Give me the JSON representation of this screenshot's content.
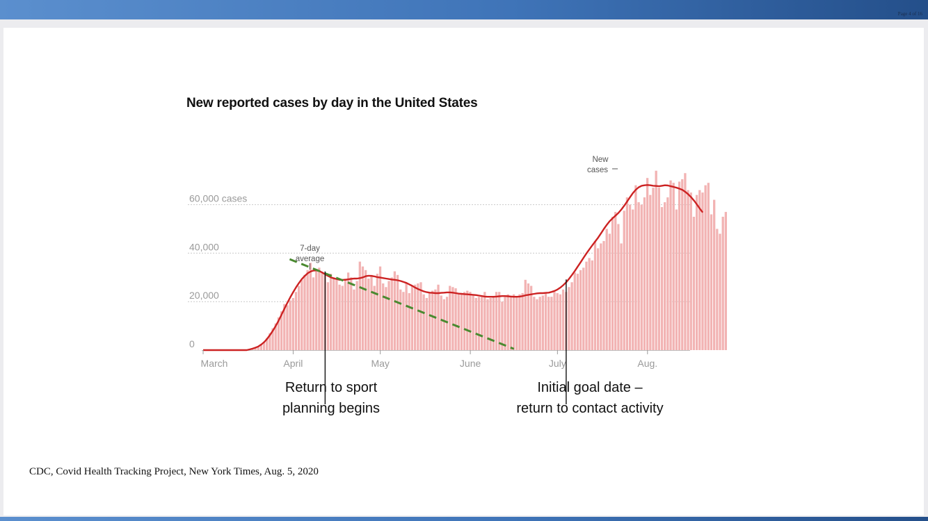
{
  "page": {
    "indicator": "Page 4 of 16"
  },
  "chart_data": {
    "type": "bar",
    "title": "New reported cases by day in the United States",
    "y_ticks": [
      {
        "value": 0,
        "label": "0"
      },
      {
        "value": 20000,
        "label": "20,000"
      },
      {
        "value": 40000,
        "label": "40,000"
      },
      {
        "value": 60000,
        "label": "60,000 cases"
      }
    ],
    "ylim": [
      0,
      75000
    ],
    "x_ticks": [
      {
        "date": "2020-03-01",
        "label": "March"
      },
      {
        "date": "2020-04-01",
        "label": "April"
      },
      {
        "date": "2020-05-01",
        "label": "May"
      },
      {
        "date": "2020-06-01",
        "label": "June"
      },
      {
        "date": "2020-07-01",
        "label": "July"
      },
      {
        "date": "2020-08-01",
        "label": "Aug."
      }
    ],
    "first_date": "2020-03-01",
    "series": [
      {
        "name": "New cases",
        "legend_label": [
          "New",
          "cases"
        ],
        "kind": "bar",
        "color": "#f2b3b3",
        "values": [
          0,
          0,
          0,
          0,
          0,
          0,
          0,
          0,
          0,
          0,
          0,
          0,
          0,
          0,
          0,
          0,
          500,
          800,
          1000,
          1500,
          2500,
          3500,
          5000,
          7000,
          9000,
          11000,
          13500,
          16000,
          19000,
          18500,
          20500,
          21500,
          24000,
          26500,
          29000,
          31000,
          33000,
          36000,
          30000,
          33500,
          34000,
          32000,
          31000,
          28000,
          31500,
          30000,
          29000,
          27000,
          26500,
          29500,
          32000,
          30000,
          25000,
          28500,
          36500,
          34500,
          33000,
          29500,
          31000,
          26500,
          31500,
          34500,
          27500,
          26000,
          28500,
          30000,
          32500,
          31000,
          25000,
          24000,
          27500,
          23500,
          26500,
          27000,
          27500,
          28000,
          23000,
          21500,
          23500,
          24500,
          25000,
          27000,
          22500,
          21000,
          22000,
          26500,
          26000,
          25500,
          23000,
          23000,
          24000,
          24500,
          24000,
          22500,
          21500,
          22000,
          22000,
          24000,
          21000,
          21500,
          22000,
          24000,
          24000,
          20000,
          22000,
          23000,
          22500,
          23000,
          22000,
          23000,
          23500,
          29000,
          27500,
          26500,
          22000,
          21000,
          22000,
          22500,
          23500,
          22000,
          22000,
          24000,
          23500,
          23000,
          25000,
          24000,
          26000,
          28000,
          32000,
          31500,
          33000,
          34000,
          36500,
          38000,
          37000,
          45000,
          42000,
          44000,
          45000,
          50000,
          48000,
          55000,
          57000,
          52000,
          44000,
          57500,
          63000,
          60000,
          58000,
          68000,
          61000,
          60000,
          63000,
          71000,
          64000,
          67000,
          74000,
          67000,
          59000,
          61000,
          63000,
          70000,
          69000,
          58000,
          69500,
          70500,
          73000,
          66000,
          65000,
          55000,
          64000,
          66000,
          65000,
          68000,
          69000,
          56000,
          62000,
          50000,
          48000,
          55000,
          57000
        ]
      },
      {
        "name": "7-day average",
        "legend_label": [
          "7-day",
          "average"
        ],
        "kind": "line",
        "color": "#cc2222",
        "values": [
          0,
          0,
          0,
          0,
          0,
          0,
          0,
          0,
          0,
          0,
          0,
          0,
          0,
          0,
          0,
          0,
          300,
          600,
          1000,
          1500,
          2300,
          3300,
          4600,
          6200,
          8000,
          10000,
          12200,
          14600,
          17100,
          19500,
          21800,
          23900,
          25900,
          27700,
          29300,
          30600,
          31700,
          32400,
          32800,
          32900,
          32600,
          32000,
          31300,
          30600,
          30000,
          29600,
          29300,
          29000,
          29000,
          29000,
          29200,
          29400,
          29500,
          29500,
          29700,
          30000,
          30500,
          30700,
          30600,
          30400,
          30100,
          29900,
          29700,
          29500,
          29300,
          29100,
          29000,
          28800,
          28500,
          28100,
          27700,
          27100,
          26500,
          25800,
          25200,
          24700,
          24200,
          23900,
          23700,
          23600,
          23500,
          23500,
          23600,
          23700,
          23800,
          23800,
          23700,
          23500,
          23300,
          23200,
          23100,
          23000,
          22900,
          22800,
          22700,
          22500,
          22300,
          22100,
          22000,
          22000,
          22000,
          22100,
          22200,
          22300,
          22300,
          22200,
          22100,
          22000,
          22000,
          22100,
          22300,
          22600,
          22800,
          23000,
          23200,
          23400,
          23500,
          23500,
          23600,
          23700,
          24000,
          24400,
          25000,
          25800,
          26800,
          28000,
          29400,
          31000,
          32700,
          34500,
          36300,
          38100,
          39900,
          41600,
          43200,
          44800,
          46400,
          48200,
          50000,
          51700,
          53200,
          54400,
          55500,
          56600,
          58000,
          59600,
          61300,
          63100,
          64800,
          66200,
          67200,
          67800,
          68000,
          68100,
          68000,
          67800,
          67700,
          67600,
          67800,
          68000,
          67900,
          67600,
          67300,
          67000,
          66600,
          66100,
          65300,
          64300,
          63100,
          61700,
          60100,
          58400,
          56800
        ]
      }
    ],
    "annotations": [
      {
        "label": "Return to sport planning begins",
        "lines": [
          "Return to sport",
          "planning begins"
        ],
        "date": "2020-04-12"
      },
      {
        "label": "Initial goal date – return to contact activity",
        "lines": [
          "Initial goal date –",
          "return to contact activity"
        ],
        "date": "2020-07-04"
      }
    ],
    "trend_line": {
      "color": "#4a8a30",
      "style": "dashed",
      "from": {
        "date": "2020-04-01",
        "value": 37500
      },
      "to": {
        "date": "2020-06-16",
        "value": 500
      }
    }
  },
  "source": "CDC, Covid Health Tracking Project, New York Times, Aug. 5, 2020"
}
